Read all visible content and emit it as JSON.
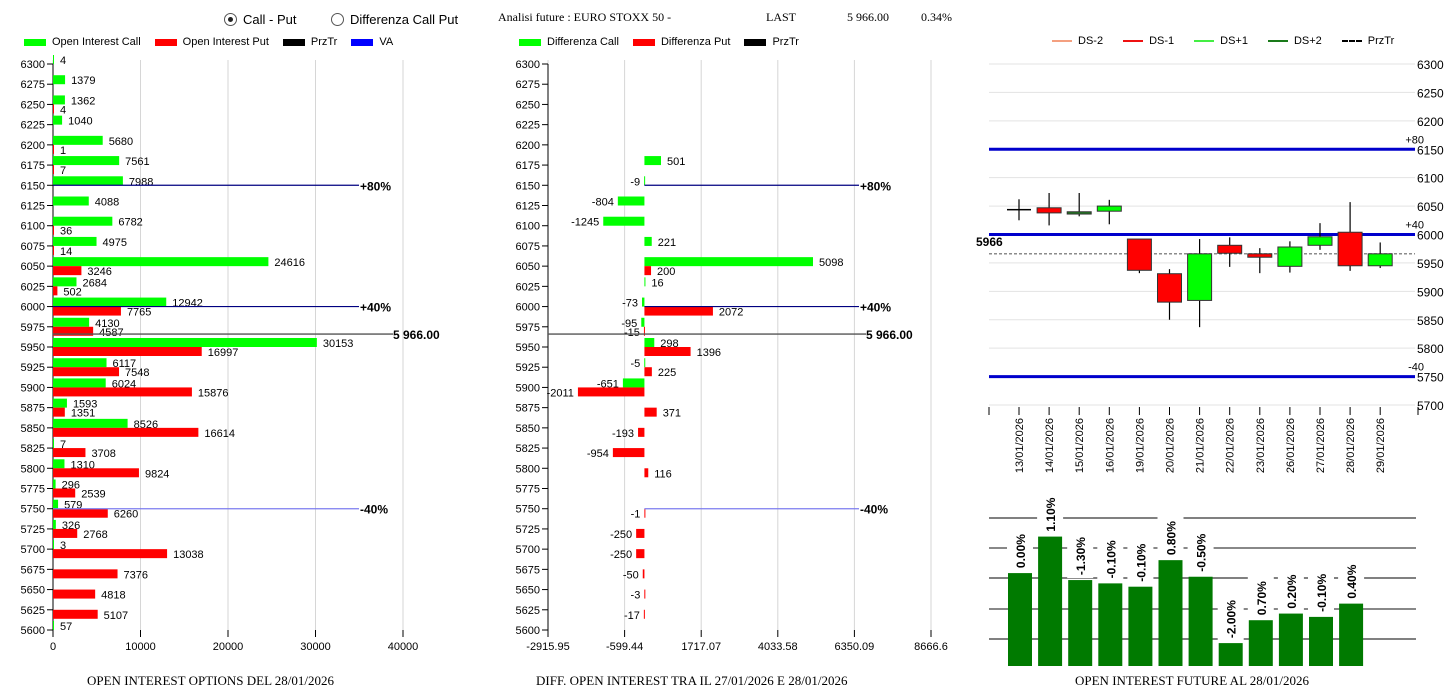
{
  "header": {
    "radio_options": [
      {
        "label": "Call - Put",
        "selected": true
      },
      {
        "label": "Differenza Call Put",
        "selected": false
      }
    ],
    "analysis_title": "Analisi future : EURO STOXX 50 -",
    "last_label": "LAST",
    "last_value": "5 966.00",
    "change_pct": "0.34%"
  },
  "colors": {
    "call": "#00ff00",
    "put": "#ff0000",
    "przTr": "#000000",
    "va": "#0000ff",
    "dark_green": "#007a00",
    "navy": "#000080"
  },
  "chart_data": [
    {
      "type": "bar",
      "orientation": "horizontal",
      "title": "OPEN INTEREST OPTIONS DEL 28/01/2026",
      "legend": [
        "Open Interest Call",
        "Open Interest Put",
        "PrzTr",
        "VA"
      ],
      "legend_position": "top-left",
      "categories": [
        6300,
        6275,
        6250,
        6225,
        6200,
        6175,
        6150,
        6125,
        6100,
        6075,
        6050,
        6025,
        6000,
        5975,
        5950,
        5925,
        5900,
        5875,
        5850,
        5825,
        5800,
        5775,
        5750,
        5725,
        5700,
        5675,
        5650,
        5625,
        5600
      ],
      "series": [
        {
          "name": "Open Interest Call",
          "values": [
            4,
            1379,
            1362,
            1040,
            5680,
            7561,
            7988,
            4088,
            6782,
            4975,
            24616,
            2684,
            12942,
            4130,
            30153,
            6117,
            6024,
            1593,
            8526,
            7,
            1310,
            296,
            579,
            326,
            3,
            null,
            null,
            null,
            57
          ]
        },
        {
          "name": "Open Interest Put",
          "values": [
            null,
            null,
            4,
            null,
            1,
            7,
            null,
            null,
            36,
            14,
            3246,
            502,
            7765,
            4587,
            16997,
            7548,
            15876,
            1351,
            16614,
            3708,
            9824,
            2539,
            6260,
            2768,
            13038,
            7376,
            4818,
            5107,
            null
          ]
        }
      ],
      "xlim": [
        0,
        40000
      ],
      "xticks": [
        "0",
        "10000",
        "20000",
        "30000",
        "40000"
      ],
      "reference_lines": [
        {
          "label": "+80%",
          "strike": 6150
        },
        {
          "label": "+40%",
          "strike": 6000
        },
        {
          "label": "-40%",
          "strike": 5750
        }
      ],
      "price_line": {
        "label": "5 966.00",
        "value": 5966
      }
    },
    {
      "type": "bar",
      "orientation": "horizontal",
      "title": "DIFF. OPEN INTEREST TRA IL 27/01/2026 E 28/01/2026",
      "legend": [
        "Differenza Call",
        "Differenza Put",
        "PrzTr"
      ],
      "legend_position": "top-left",
      "categories": [
        6300,
        6275,
        6250,
        6225,
        6200,
        6175,
        6150,
        6125,
        6100,
        6075,
        6050,
        6025,
        6000,
        5975,
        5950,
        5925,
        5900,
        5875,
        5850,
        5825,
        5800,
        5775,
        5750,
        5725,
        5700,
        5675,
        5650,
        5625,
        5600
      ],
      "series": [
        {
          "name": "Differenza Call",
          "values": [
            null,
            null,
            null,
            null,
            null,
            501,
            -9,
            -804,
            -1245,
            221,
            5098,
            16,
            -73,
            -95,
            298,
            -5,
            -651,
            null,
            null,
            null,
            null,
            null,
            null,
            null,
            null,
            null,
            null,
            null,
            null
          ]
        },
        {
          "name": "Differenza Put",
          "values": [
            null,
            null,
            null,
            null,
            null,
            null,
            null,
            null,
            null,
            null,
            200,
            null,
            2072,
            -15,
            1396,
            225,
            -2011,
            371,
            -193,
            -954,
            116,
            null,
            -1,
            -250,
            -250,
            -50,
            -3,
            -17,
            null
          ]
        }
      ],
      "xlim": [
        -2915.95,
        8666.6
      ],
      "xticks": [
        "-2915.95",
        "-599.44",
        "1717.07",
        "4033.58",
        "6350.09",
        "8666.6"
      ],
      "reference_lines": [
        {
          "label": "+80%",
          "strike": 6150
        },
        {
          "label": "+40%",
          "strike": 6000
        },
        {
          "label": "-40%",
          "strike": 5750
        }
      ],
      "price_line": {
        "label": "5 966.00",
        "value": 5966
      }
    },
    {
      "type": "candlestick",
      "title": "",
      "legend": [
        "DS-2",
        "DS-1",
        "DS+1",
        "DS+2",
        "PrzTr"
      ],
      "legend_position": "top",
      "ylim": [
        5700,
        6300
      ],
      "yticks": [
        "6300",
        "6250",
        "6200",
        "6150",
        "6100",
        "6050",
        "6000",
        "5950",
        "5900",
        "5850",
        "5800",
        "5750",
        "5700"
      ],
      "dates": [
        "13/01/2026",
        "14/01/2026",
        "15/01/2026",
        "16/01/2026",
        "19/01/2026",
        "20/01/2026",
        "21/01/2026",
        "22/01/2026",
        "23/01/2026",
        "26/01/2026",
        "27/01/2026",
        "28/01/2026",
        "29/01/2026"
      ],
      "candles": [
        {
          "open": 6045,
          "high": 6062,
          "low": 6025,
          "close": 6045
        },
        {
          "open": 6047,
          "high": 6073,
          "low": 6016,
          "close": 6038
        },
        {
          "open": 6036,
          "high": 6073,
          "low": 6032,
          "close": 6040
        },
        {
          "open": 6041,
          "high": 6061,
          "low": 6018,
          "close": 6050
        },
        {
          "open": 5992,
          "high": 5992,
          "low": 5932,
          "close": 5937
        },
        {
          "open": 5931,
          "high": 5939,
          "low": 5850,
          "close": 5881
        },
        {
          "open": 5884,
          "high": 5992,
          "low": 5837,
          "close": 5966
        },
        {
          "open": 5981,
          "high": 5995,
          "low": 5943,
          "close": 5967
        },
        {
          "open": 5966,
          "high": 5976,
          "low": 5932,
          "close": 5960
        },
        {
          "open": 5944,
          "high": 5988,
          "low": 5933,
          "close": 5978
        },
        {
          "open": 5981,
          "high": 6020,
          "low": 5973,
          "close": 5996
        },
        {
          "open": 6004,
          "high": 6057,
          "low": 5936,
          "close": 5945
        },
        {
          "open": 5945,
          "high": 5986,
          "low": 5941,
          "close": 5966
        }
      ],
      "reference_lines": [
        {
          "label": "+80",
          "value": 6150
        },
        {
          "label": "+40",
          "value": 6000
        },
        {
          "label": "-40",
          "value": 5750
        }
      ],
      "price_line": {
        "label": "5966",
        "value": 5966
      }
    },
    {
      "type": "bar",
      "title": "OPEN INTEREST FUTURE AL 28/01/2026",
      "categories": [
        "13/01/2026",
        "14/01/2026",
        "15/01/2026",
        "16/01/2026",
        "19/01/2026",
        "20/01/2026",
        "21/01/2026",
        "22/01/2026",
        "23/01/2026",
        "26/01/2026",
        "27/01/2026",
        "28/01/2026"
      ],
      "labels": [
        "0.00%",
        "1.10%",
        "-1.30%",
        "-0.10%",
        "-0.10%",
        "0.80%",
        "-0.50%",
        "-2.00%",
        "0.70%",
        "0.20%",
        "-0.10%",
        "0.40%"
      ],
      "values": [
        0.0,
        1.1,
        -1.3,
        -0.1,
        -0.1,
        0.8,
        -0.5,
        -2.0,
        0.7,
        0.2,
        -0.1,
        0.4
      ],
      "relative_levels": [
        100.0,
        101.1,
        99.79,
        99.69,
        99.59,
        100.39,
        99.89,
        97.89,
        98.58,
        98.78,
        98.68,
        99.08
      ]
    }
  ]
}
